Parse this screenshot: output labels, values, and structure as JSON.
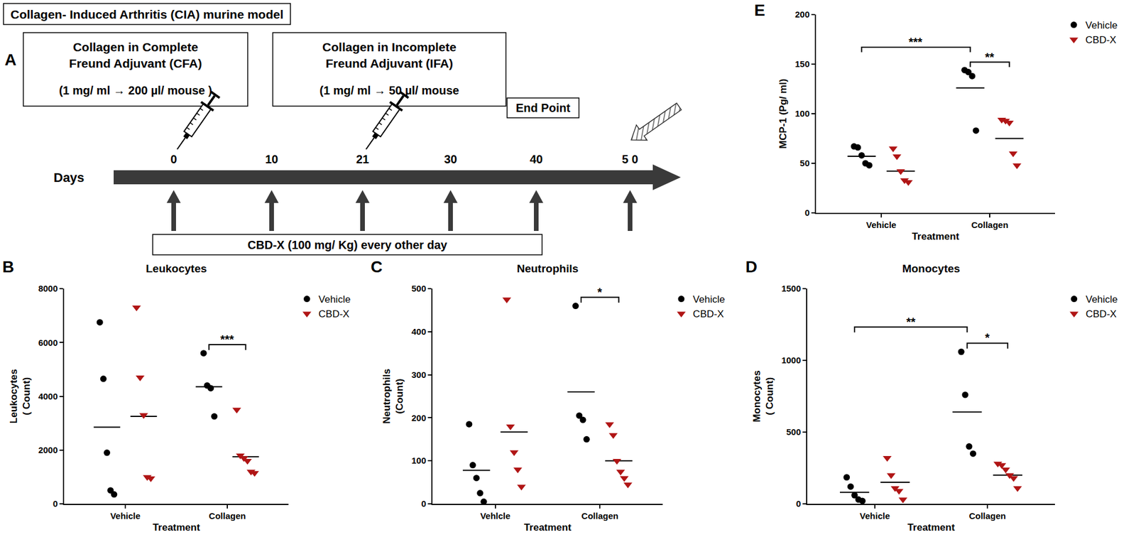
{
  "diagram": {
    "panel": "A",
    "header": "Collagen- Induced Arthritis (CIA) murine model",
    "boxes": [
      {
        "lines": [
          "Collagen in Complete",
          "Freund Adjuvant (CFA)"
        ],
        "dose": "(1 mg/ ml → 200 µl/ mouse )"
      },
      {
        "lines": [
          "Collagen in Incomplete",
          "Freund Adjuvant (IFA)"
        ],
        "dose": "(1 mg/ ml → 50 µl/ mouse"
      }
    ],
    "end_point": "End Point",
    "axis_label": "Days",
    "days": [
      {
        "value": 0,
        "label": "0"
      },
      {
        "value": 10,
        "label": "10"
      },
      {
        "value": 21,
        "label": "21"
      },
      {
        "value": 30,
        "label": "30"
      },
      {
        "value": 40,
        "label": "40"
      },
      {
        "value": 50,
        "label": "5 0"
      }
    ],
    "injection_days": [
      0,
      21
    ],
    "end_day": 50,
    "treatment_days": [
      0,
      10,
      21,
      30,
      40,
      50
    ],
    "treatment": "CBD-X (100 mg/ Kg) every other day"
  },
  "chart_data": [
    {
      "type": "scatter",
      "panel": "B",
      "title": "Leukocytes",
      "x_label": "Treatment",
      "y_label": [
        "Leukocytes",
        "( Count)"
      ],
      "categories": [
        "Vehicle",
        "Collagen"
      ],
      "series": [
        {
          "name": "Vehicle",
          "color": "#000000",
          "marker": "circle",
          "values": [
            [
              6750,
              4650,
              1900,
              500,
              350
            ],
            [
              5600,
              4400,
              4300,
              3250
            ]
          ],
          "means": [
            2850,
            4350
          ]
        },
        {
          "name": "CBD-X",
          "color": "#b01515",
          "marker": "triangle-down",
          "values": [
            [
              7300,
              4700,
              3300,
              1000,
              950
            ],
            [
              3500,
              1800,
              1700,
              1600,
              1200,
              1150
            ]
          ],
          "means": [
            3250,
            1750
          ]
        }
      ],
      "ylim": [
        0,
        8000
      ],
      "yticks": [
        0,
        2000,
        4000,
        6000,
        8000
      ],
      "grid": false,
      "legend": "right",
      "brackets": [
        {
          "from": [
            "Collagen",
            "Vehicle"
          ],
          "to": [
            "Collagen",
            "CBD-X"
          ],
          "label": "***"
        }
      ]
    },
    {
      "type": "scatter",
      "panel": "C",
      "title": "Neutrophils",
      "x_label": "Treatment",
      "y_label": [
        "Neutrophils",
        "(Count)"
      ],
      "categories": [
        "Vehlcle",
        "Collagen"
      ],
      "series": [
        {
          "name": "Vehicle",
          "color": "#000000",
          "marker": "circle",
          "values": [
            [
              185,
              90,
              60,
              25,
              5
            ],
            [
              460,
              205,
              195,
              150
            ]
          ],
          "means": [
            78,
            260
          ]
        },
        {
          "name": "CBD-X",
          "color": "#b01515",
          "marker": "triangle-down",
          "values": [
            [
              475,
              180,
              120,
              80,
              40
            ],
            [
              185,
              160,
              100,
              75,
              60,
              45
            ]
          ],
          "means": [
            167,
            100
          ]
        }
      ],
      "ylim": [
        0,
        500
      ],
      "yticks": [
        0,
        100,
        200,
        300,
        400,
        500
      ],
      "grid": false,
      "legend": "right",
      "brackets": [
        {
          "from": [
            "Collagen",
            "Vehicle"
          ],
          "to": [
            "Collagen",
            "CBD-X"
          ],
          "label": "*"
        }
      ]
    },
    {
      "type": "scatter",
      "panel": "D",
      "title": "Monocytes",
      "x_label": "Treatment",
      "y_label": [
        "Monocytes",
        "( Count)"
      ],
      "categories": [
        "Vehicle",
        "Collagen"
      ],
      "series": [
        {
          "name": "Vehicle",
          "color": "#000000",
          "marker": "circle",
          "values": [
            [
              185,
              120,
              60,
              30,
              20
            ],
            [
              1060,
              760,
              400,
              350
            ]
          ],
          "means": [
            80,
            640
          ]
        },
        {
          "name": "CBD-X",
          "color": "#b01515",
          "marker": "triangle-down",
          "values": [
            [
              320,
              200,
              110,
              90,
              30
            ],
            [
              280,
              270,
              240,
              200,
              180,
              110
            ]
          ],
          "means": [
            150,
            200
          ]
        }
      ],
      "ylim": [
        0,
        1500
      ],
      "yticks": [
        0,
        500,
        1000,
        1500
      ],
      "grid": false,
      "legend": "right",
      "brackets": [
        {
          "from": [
            "Collagen",
            "Vehicle"
          ],
          "to": [
            "Collagen",
            "CBD-X"
          ],
          "label": "*"
        },
        {
          "from": [
            "Vehicle",
            "Vehicle"
          ],
          "to": [
            "Collagen",
            "Vehicle"
          ],
          "label": "**"
        }
      ]
    },
    {
      "type": "scatter",
      "panel": "E",
      "x_label": "Treatment",
      "y_label": [
        "MCP-1 (Pg/ ml)"
      ],
      "categories": [
        "Vehicle",
        "Collagen"
      ],
      "series": [
        {
          "name": "Vehicle",
          "color": "#000000",
          "marker": "circle",
          "values": [
            [
              67,
              66,
              58,
              50,
              48
            ],
            [
              144,
              142,
              138,
              83
            ]
          ],
          "means": [
            57,
            126
          ]
        },
        {
          "name": "CBD-X",
          "color": "#b01515",
          "marker": "triangle-down",
          "values": [
            [
              65,
              57,
              42,
              33,
              31
            ],
            [
              94,
              93,
              91,
              60,
              48
            ]
          ],
          "means": [
            42,
            75
          ]
        }
      ],
      "ylim": [
        0,
        200
      ],
      "yticks": [
        0,
        50,
        100,
        150,
        200
      ],
      "grid": false,
      "legend": "right",
      "brackets": [
        {
          "from": [
            "Collagen",
            "Vehicle"
          ],
          "to": [
            "Collagen",
            "CBD-X"
          ],
          "label": "**"
        },
        {
          "from": [
            "Vehicle",
            "Vehicle"
          ],
          "to": [
            "Collagen",
            "Vehicle"
          ],
          "label": "***"
        }
      ]
    }
  ]
}
